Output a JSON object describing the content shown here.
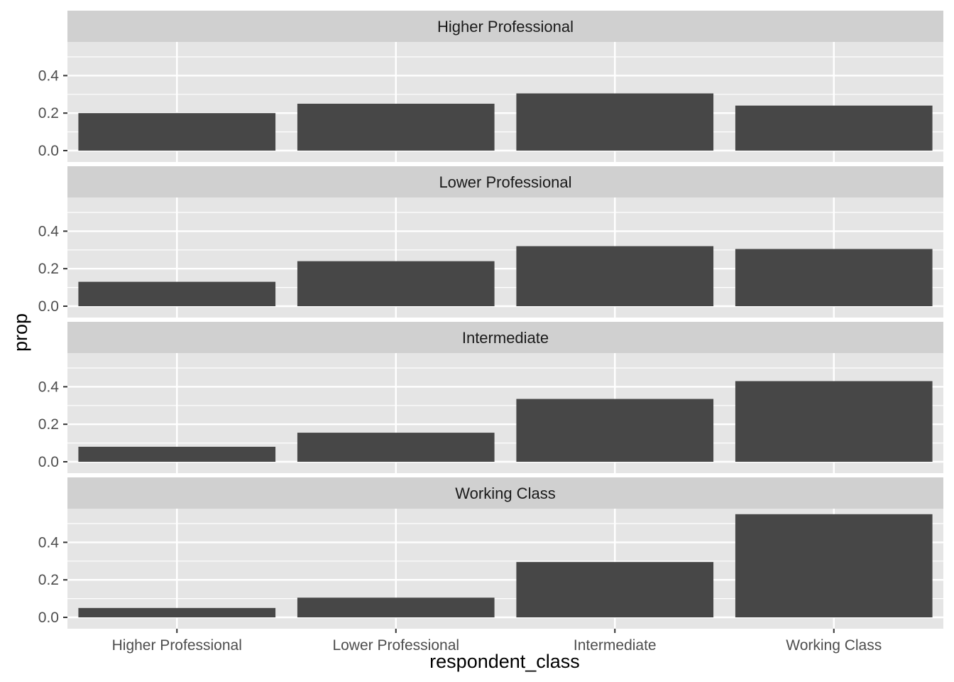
{
  "chart_data": {
    "type": "bar",
    "facet_by": "row",
    "xlabel": "respondent_class",
    "ylabel": "prop",
    "categories": [
      "Higher Professional",
      "Lower Professional",
      "Intermediate",
      "Working Class"
    ],
    "y_ticks": [
      0.0,
      0.2,
      0.4
    ],
    "y_tick_labels": [
      "0.0",
      "0.2",
      "0.4"
    ],
    "ylim": [
      -0.005,
      0.58
    ],
    "grid": true,
    "colors": {
      "bar": "#474747",
      "panel_bg": "#e5e5e5",
      "strip_bg": "#d0d0d0",
      "grid": "#ffffff"
    },
    "panels": [
      {
        "title": "Higher Professional",
        "values": [
          0.2,
          0.25,
          0.305,
          0.24
        ]
      },
      {
        "title": "Lower Professional",
        "values": [
          0.13,
          0.24,
          0.32,
          0.305
        ]
      },
      {
        "title": "Intermediate",
        "values": [
          0.08,
          0.155,
          0.335,
          0.43
        ]
      },
      {
        "title": "Working Class",
        "values": [
          0.05,
          0.105,
          0.295,
          0.55
        ]
      }
    ]
  }
}
